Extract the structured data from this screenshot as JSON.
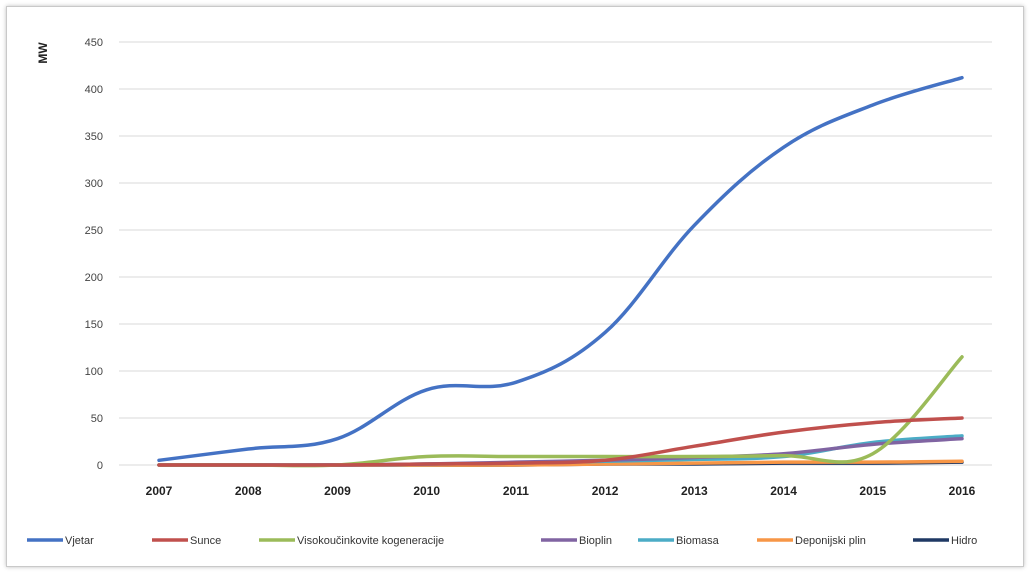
{
  "chart_data": {
    "type": "line",
    "ylabel": "MW",
    "xlabel": "",
    "title": "",
    "ylim": [
      0,
      450
    ],
    "yticks": [
      0,
      50,
      100,
      150,
      200,
      250,
      300,
      350,
      400,
      450
    ],
    "categories": [
      "2007",
      "2008",
      "2009",
      "2010",
      "2011",
      "2012",
      "2013",
      "2014",
      "2015",
      "2016"
    ],
    "grid": "horizontal",
    "legend_position": "bottom",
    "series": [
      {
        "name": "Vjetar",
        "color": "#4472c4",
        "values": [
          5,
          17,
          28,
          80,
          88,
          141,
          255,
          338,
          383,
          412
        ]
      },
      {
        "name": "Sunce",
        "color": "#c0504d",
        "values": [
          0,
          0,
          0,
          1,
          2,
          5,
          20,
          35,
          45,
          50
        ]
      },
      {
        "name": "Visokoučinkovite kogeneracije",
        "color": "#9bbb59",
        "values": [
          0,
          0,
          0,
          9,
          9,
          9,
          9,
          10,
          12,
          115
        ]
      },
      {
        "name": "Bioplin",
        "color": "#8064a2",
        "values": [
          0,
          0,
          0,
          1,
          3,
          5,
          8,
          12,
          22,
          28
        ]
      },
      {
        "name": "Biomasa",
        "color": "#4bacc6",
        "values": [
          0,
          0,
          0,
          1,
          2,
          4,
          6,
          9,
          24,
          31
        ]
      },
      {
        "name": "Deponijski plin",
        "color": "#f79646",
        "values": [
          0,
          0,
          0,
          0,
          0,
          1,
          2,
          3,
          3,
          4
        ]
      },
      {
        "name": "Hidro",
        "color": "#1f3864",
        "values": [
          0,
          0,
          0,
          0,
          0,
          1,
          1,
          2,
          2,
          3
        ]
      }
    ]
  }
}
